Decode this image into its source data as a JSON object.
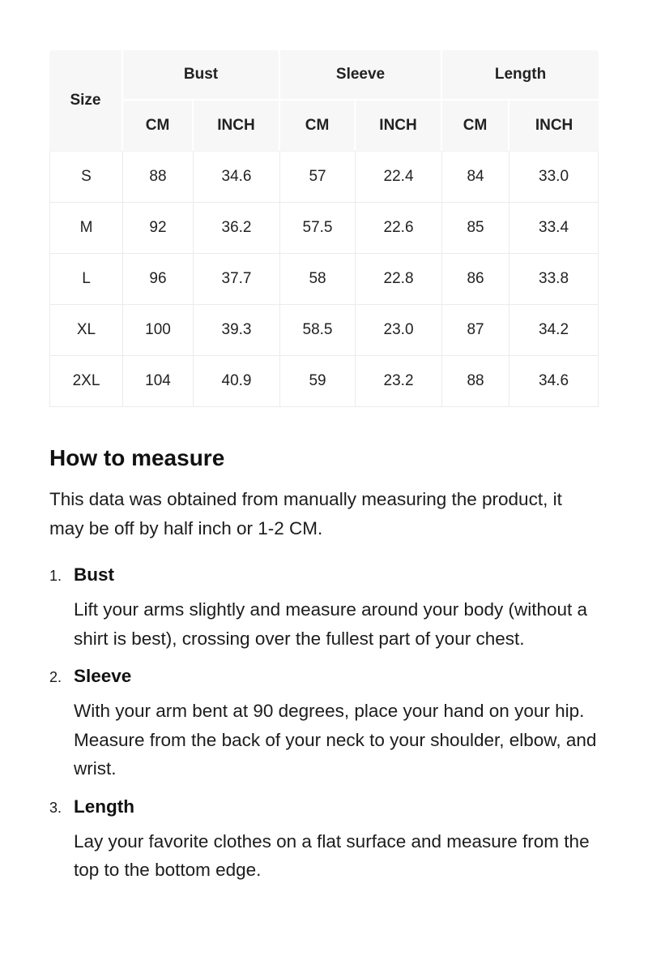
{
  "colors": {
    "page_background": "#ffffff",
    "table_header_background": "#f7f7f8",
    "table_border": "#ebebed",
    "text": "#1c1c1e"
  },
  "size_chart": {
    "corner_label": "Size",
    "groups": [
      "Bust",
      "Sleeve",
      "Length"
    ],
    "units": [
      "CM",
      "INCH",
      "CM",
      "INCH",
      "CM",
      "INCH"
    ],
    "rows": [
      [
        "S",
        "88",
        "34.6",
        "57",
        "22.4",
        "84",
        "33.0"
      ],
      [
        "M",
        "92",
        "36.2",
        "57.5",
        "22.6",
        "85",
        "33.4"
      ],
      [
        "L",
        "96",
        "37.7",
        "58",
        "22.8",
        "86",
        "33.8"
      ],
      [
        "XL",
        "100",
        "39.3",
        "58.5",
        "23.0",
        "87",
        "34.2"
      ],
      [
        "2XL",
        "104",
        "40.9",
        "59",
        "23.2",
        "88",
        "34.6"
      ]
    ]
  },
  "how_to_measure": {
    "title": "How to measure",
    "intro": "This data was obtained from manually measuring the product, it may be off by half inch or 1-2 CM.",
    "steps": [
      {
        "number": "1.",
        "title": "Bust",
        "text": "Lift your arms slightly and measure around your body (without a shirt is best), crossing over the fullest part of your chest."
      },
      {
        "number": "2.",
        "title": "Sleeve",
        "text": "With your arm bent at 90 degrees, place your hand on your hip. Measure from the back of your neck to your shoulder, elbow, and wrist."
      },
      {
        "number": "3.",
        "title": "Length",
        "text": "Lay your favorite clothes on a flat surface and measure from the top to the bottom edge."
      }
    ]
  }
}
